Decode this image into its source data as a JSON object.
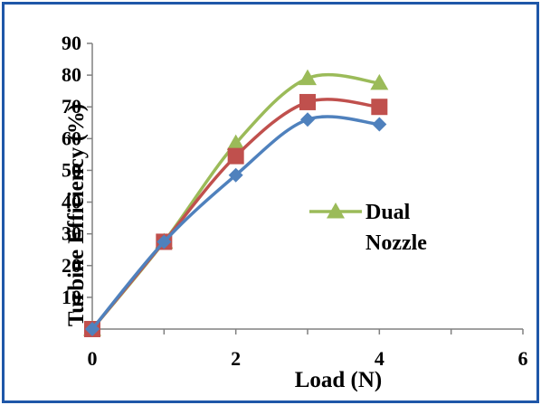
{
  "chart_data": {
    "type": "line",
    "xlabel": "Load (N)",
    "ylabel": "Turbine Efficiency (%)",
    "xlim": [
      0,
      6
    ],
    "ylim": [
      0,
      90
    ],
    "x_ticks": [
      "0",
      "2",
      "4",
      "6"
    ],
    "y_ticks": [
      "10",
      "20",
      "30",
      "40",
      "50",
      "60",
      "70",
      "80",
      "90"
    ],
    "x": [
      0,
      1,
      2,
      3,
      4
    ],
    "grid": false,
    "legend_placement": "right-center",
    "series": [
      {
        "values": [
          0,
          27.5,
          48.5,
          66,
          64.5
        ],
        "marker": "diamond",
        "color": "#4f81bd"
      },
      {
        "values": [
          0,
          27.5,
          54.5,
          71.5,
          70
        ],
        "marker": "square",
        "color": "#c0504d"
      },
      {
        "name": "Dual Nozzle",
        "values": [
          0,
          27.5,
          58.5,
          79,
          77.5
        ],
        "marker": "triangle",
        "color": "#9bbb59"
      }
    ]
  }
}
